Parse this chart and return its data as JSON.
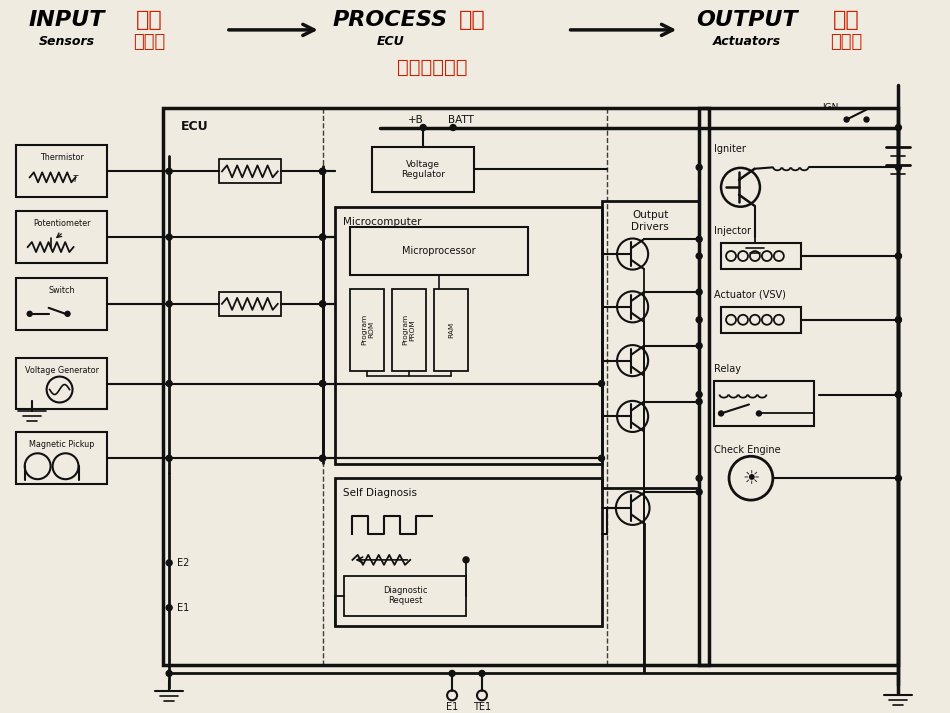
{
  "bg_color": "#f0ebe0",
  "line_color": "#111111",
  "red_color": "#cc2000",
  "header_input_en": "INPUT",
  "header_input_cn": "输入",
  "header_sensors_en": "Sensors",
  "header_sensors_cn": "传感器",
  "header_process_en": "PROCESS",
  "header_process_cn": "处理",
  "header_ecu_en": "ECU",
  "header_ecu_cn": "电子控制单元",
  "header_output_en": "OUTPUT",
  "header_output_cn": "输出",
  "header_actuators_en": "Actuators",
  "header_actuators_cn": "执行器",
  "sensor_names": [
    "Thermistor",
    "Potentiometer",
    "Switch",
    "Voltage Generator",
    "Magnetic Pickup"
  ],
  "output_names": [
    "Igniter",
    "Injector",
    "Actuator (VSV)",
    "Relay",
    "Check Engine"
  ],
  "memory_chips": [
    "Program\nROM",
    "Program\nPROM",
    "RAM"
  ],
  "ecu_border_label": "ECU",
  "plusb_label": "+B",
  "batt_label": "BATT",
  "ign_label": "IGN",
  "e1_label": "E1",
  "e2_label": "E2",
  "te1_label": "TE1",
  "microcomputer_label": "Microcomputer",
  "microprocessor_label": "Microprocessor",
  "selfdiag_label": "Self Diagnosis",
  "diag_req_label": "Diagnostic\nRequest",
  "output_drivers_label": "Output\nDrivers",
  "voltage_reg_label": "Voltage\nRegulator"
}
